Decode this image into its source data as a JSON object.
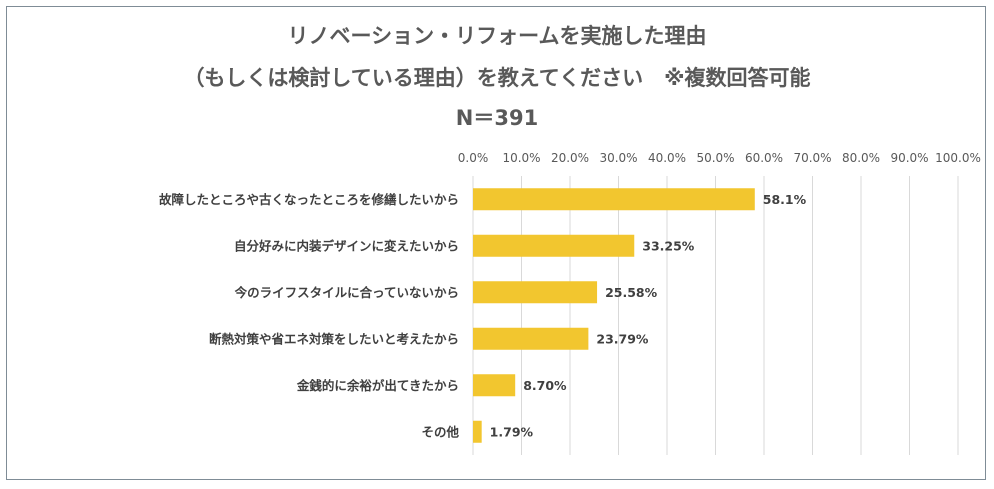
{
  "chart_data": {
    "type": "bar",
    "orientation": "horizontal",
    "title_lines": [
      "リノベーション・リフォームを実施した理由",
      "（もしくは検討している理由）を教えてください　※複数回答可能",
      "N＝391"
    ],
    "categories": [
      "故障したところや古くなったところを修繕したいから",
      "自分好みに内装デザインに変えたいから",
      "今のライフスタイルに合っていないから",
      "断熱対策や省エネ対策をしたいと考えたから",
      "金銭的に余裕が出てきたから",
      "その他"
    ],
    "values": [
      58.1,
      33.25,
      25.58,
      23.79,
      8.7,
      1.79
    ],
    "value_labels": [
      "58.1%",
      "33.25%",
      "25.58%",
      "23.79%",
      "8.70%",
      "1.79%"
    ],
    "xlim": [
      0,
      100
    ],
    "x_ticks": [
      0,
      10,
      20,
      30,
      40,
      50,
      60,
      70,
      80,
      90,
      100
    ],
    "x_tick_labels": [
      "0.0%",
      "10.0%",
      "20.0%",
      "30.0%",
      "40.0%",
      "50.0%",
      "60.0%",
      "70.0%",
      "80.0%",
      "90.0%",
      "100.0%"
    ],
    "axis_position": "top",
    "grid": true,
    "bar_color": "#f2c62f",
    "grid_color": "#d9d9d9"
  }
}
